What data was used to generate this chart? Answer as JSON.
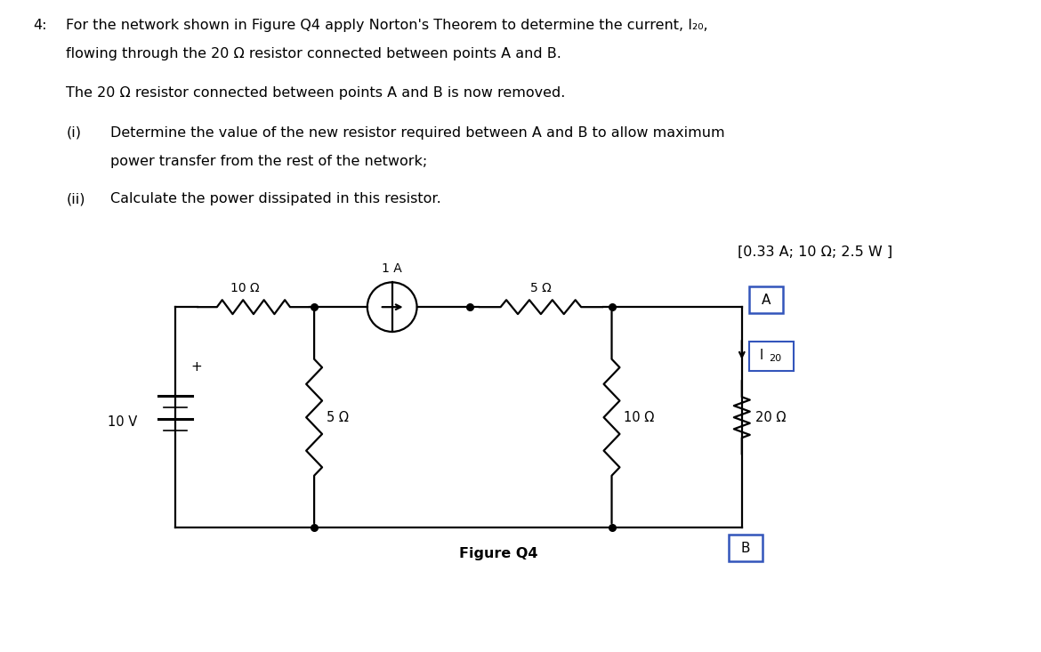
{
  "title_num": "4:",
  "line1": "For the network shown in Figure Q4 apply Norton's Theorem to determine the current, I₂₀,",
  "line2": "flowing through the 20 Ω resistor connected between points A and B.",
  "line3": "The 20 Ω resistor connected between points A and B is now removed.",
  "item_i_label": "(i)",
  "item_i_text1": "Determine the value of the new resistor required between A and B to allow maximum",
  "item_i_text2": "power transfer from the rest of the network;",
  "item_ii_label": "(ii)",
  "item_ii_text": "Calculate the power dissipated in this resistor.",
  "answer": "[0.33 A; 10 Ω; 2.5 W ]",
  "fig_label": "Figure Q4",
  "voltage_label": "10 V",
  "r1_label": "10 Ω",
  "r2_label": "5 Ω",
  "r3_label": "10 Ω",
  "r4_label": "20 Ω",
  "r5_label": "5 Ω",
  "current_label": "1 A",
  "node_a": "A",
  "node_b": "B",
  "i20_label": "I",
  "i20_sub": "20",
  "background": "#ffffff",
  "text_color": "#000000",
  "circuit_color": "#000000",
  "box_color": "#3355bb"
}
